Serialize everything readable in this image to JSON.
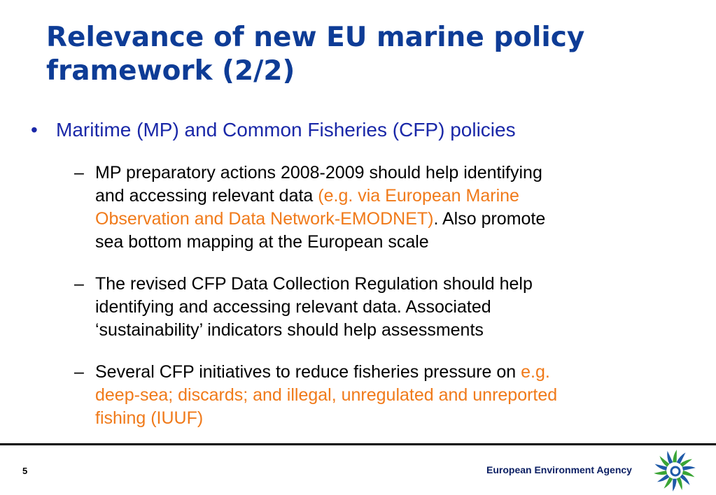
{
  "slide": {
    "title_lines": [
      "Relevance of new EU marine policy",
      "framework (2/2)"
    ],
    "bullet": {
      "marker": "•",
      "text": "Maritime (MP) and Common Fisheries (CFP) policies"
    },
    "subbullets": [
      {
        "dash": "–",
        "l1": "MP preparatory actions 2008-2009 should help identifying",
        "l2a": "and accessing relevant data ",
        "l2b": "(e.g. via European Marine",
        "l3a": "Observation and Data Network-EMODNET)",
        "l3b": ". Also promote",
        "l4": "sea bottom mapping at the European scale"
      },
      {
        "dash": "–",
        "l1": "The revised CFP Data Collection Regulation should help",
        "l2": "identifying and accessing relevant data. Associated",
        "l3": "‘sustainability’ indicators should help assessments"
      },
      {
        "dash": "–",
        "l1a": "Several CFP initiatives to reduce fisheries pressure on ",
        "l1b": "e.g.",
        "l2": "deep-sea; discards; and illegal, unregulated and unreported",
        "l3": "fishing (IUUF)"
      }
    ]
  },
  "footer": {
    "page_number": "5",
    "agency": "European Environment Agency",
    "logo_icon": "eea-logo-icon"
  },
  "colors": {
    "title": "#0e3c96",
    "bullet": "#1a28a8",
    "body": "#000000",
    "highlight": "#f07a1a",
    "logo_green": "#3aa535",
    "logo_blue": "#1f5aa8"
  }
}
